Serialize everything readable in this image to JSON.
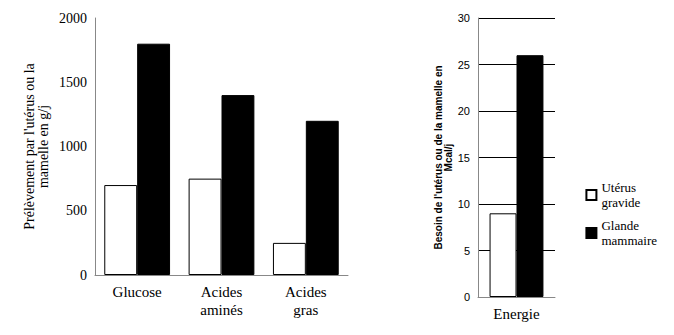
{
  "chart_data": [
    {
      "type": "bar",
      "y_label": "Prélèvement par l'utérus ou la mamelle en g/j",
      "categories": [
        "Glucose",
        "Acides aminés",
        "Acides gras"
      ],
      "series": [
        {
          "name": "Utérus gravide",
          "color": "#ffffff",
          "values": [
            700,
            750,
            250
          ]
        },
        {
          "name": "Glande mammaire",
          "color": "#000000",
          "values": [
            1800,
            1400,
            1200
          ]
        }
      ],
      "ylim": [
        0,
        2000
      ],
      "yticks": [
        0,
        500,
        1000,
        1500,
        2000
      ],
      "grid": false
    },
    {
      "type": "bar",
      "y_label": "Besoin de l'utérus ou de la mamelle en Mcal/j",
      "categories": [
        "Energie"
      ],
      "series": [
        {
          "name": "Utérus gravide",
          "color": "#ffffff",
          "values": [
            9
          ]
        },
        {
          "name": "Glande mammaire",
          "color": "#000000",
          "values": [
            26
          ]
        }
      ],
      "ylim": [
        0,
        30
      ],
      "yticks": [
        0,
        5,
        10,
        15,
        20,
        25,
        30
      ],
      "grid": true,
      "legend": "right"
    }
  ]
}
